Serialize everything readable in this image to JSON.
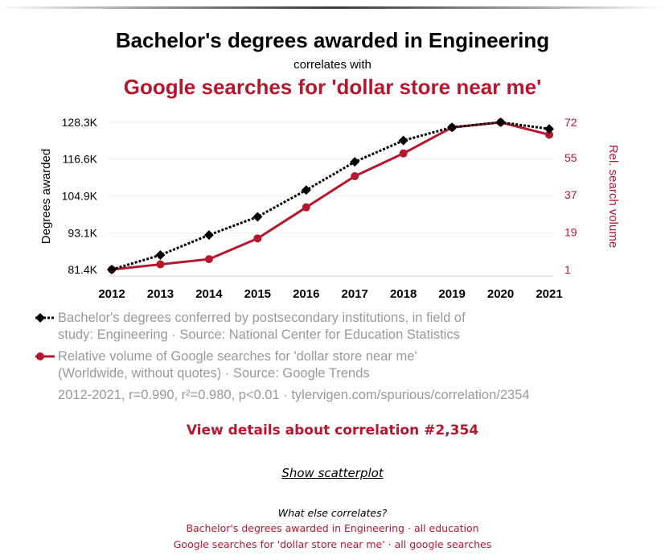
{
  "header": {
    "title": "Bachelor's degrees awarded in Engineering",
    "subtitle": "correlates with",
    "title2": "Google searches for 'dollar store near me'"
  },
  "chart_data": {
    "type": "line",
    "x": [
      2012,
      2013,
      2014,
      2015,
      2016,
      2017,
      2018,
      2019,
      2020,
      2021
    ],
    "y_left": {
      "label": "Degrees awarded",
      "ticks": [
        "81.4K",
        "93.1K",
        "104.9K",
        "116.6K",
        "128.3K"
      ],
      "tick_values": [
        81400,
        93100,
        104900,
        116600,
        128300
      ],
      "range": [
        81400,
        128300
      ]
    },
    "y_right": {
      "label": "Rel. search volume",
      "ticks": [
        "1",
        "19",
        "37",
        "55",
        "72"
      ],
      "tick_values": [
        1,
        19,
        37,
        55,
        72
      ],
      "range": [
        1,
        72
      ]
    },
    "series": [
      {
        "name": "Bachelor's degrees conferred by postsecondary institutions, in field of study: Engineering",
        "axis": "left",
        "color": "#000000",
        "style": "dotted",
        "marker": "diamond",
        "values": [
          81400,
          86000,
          92400,
          98200,
          106700,
          115700,
          122500,
          126700,
          128300,
          126200
        ]
      },
      {
        "name": "Relative volume of Google searches for 'dollar store near me'",
        "axis": "right",
        "color": "#b5172f",
        "style": "solid",
        "marker": "circle",
        "values": [
          1,
          3.5,
          6,
          16,
          31,
          46,
          57,
          69.5,
          72,
          66
        ]
      }
    ],
    "grid": true
  },
  "legend": {
    "entry1_line1": "Bachelor's degrees conferred by postsecondary institutions, in field of",
    "entry1_line2": "study: Engineering · Source: National Center for Education Statistics",
    "entry2_line1": "Relative volume of Google searches for 'dollar store near me'",
    "entry2_line2": "(Worldwide, without quotes) · Source: Google Trends",
    "meta": "2012-2021, r=0.990, r²=0.980, p<0.01 · tylervigen.com/spurious/correlation/2354"
  },
  "links": {
    "details": "View details about correlation #2,354",
    "scatter": "Show scatterplot",
    "what_else": "What else correlates?",
    "line1_a": "Bachelor's degrees awarded in Engineering",
    "line1_b": "all education",
    "line2_a": "Google searches for 'dollar store near me'",
    "line2_b": "all google searches",
    "sep": "·"
  }
}
